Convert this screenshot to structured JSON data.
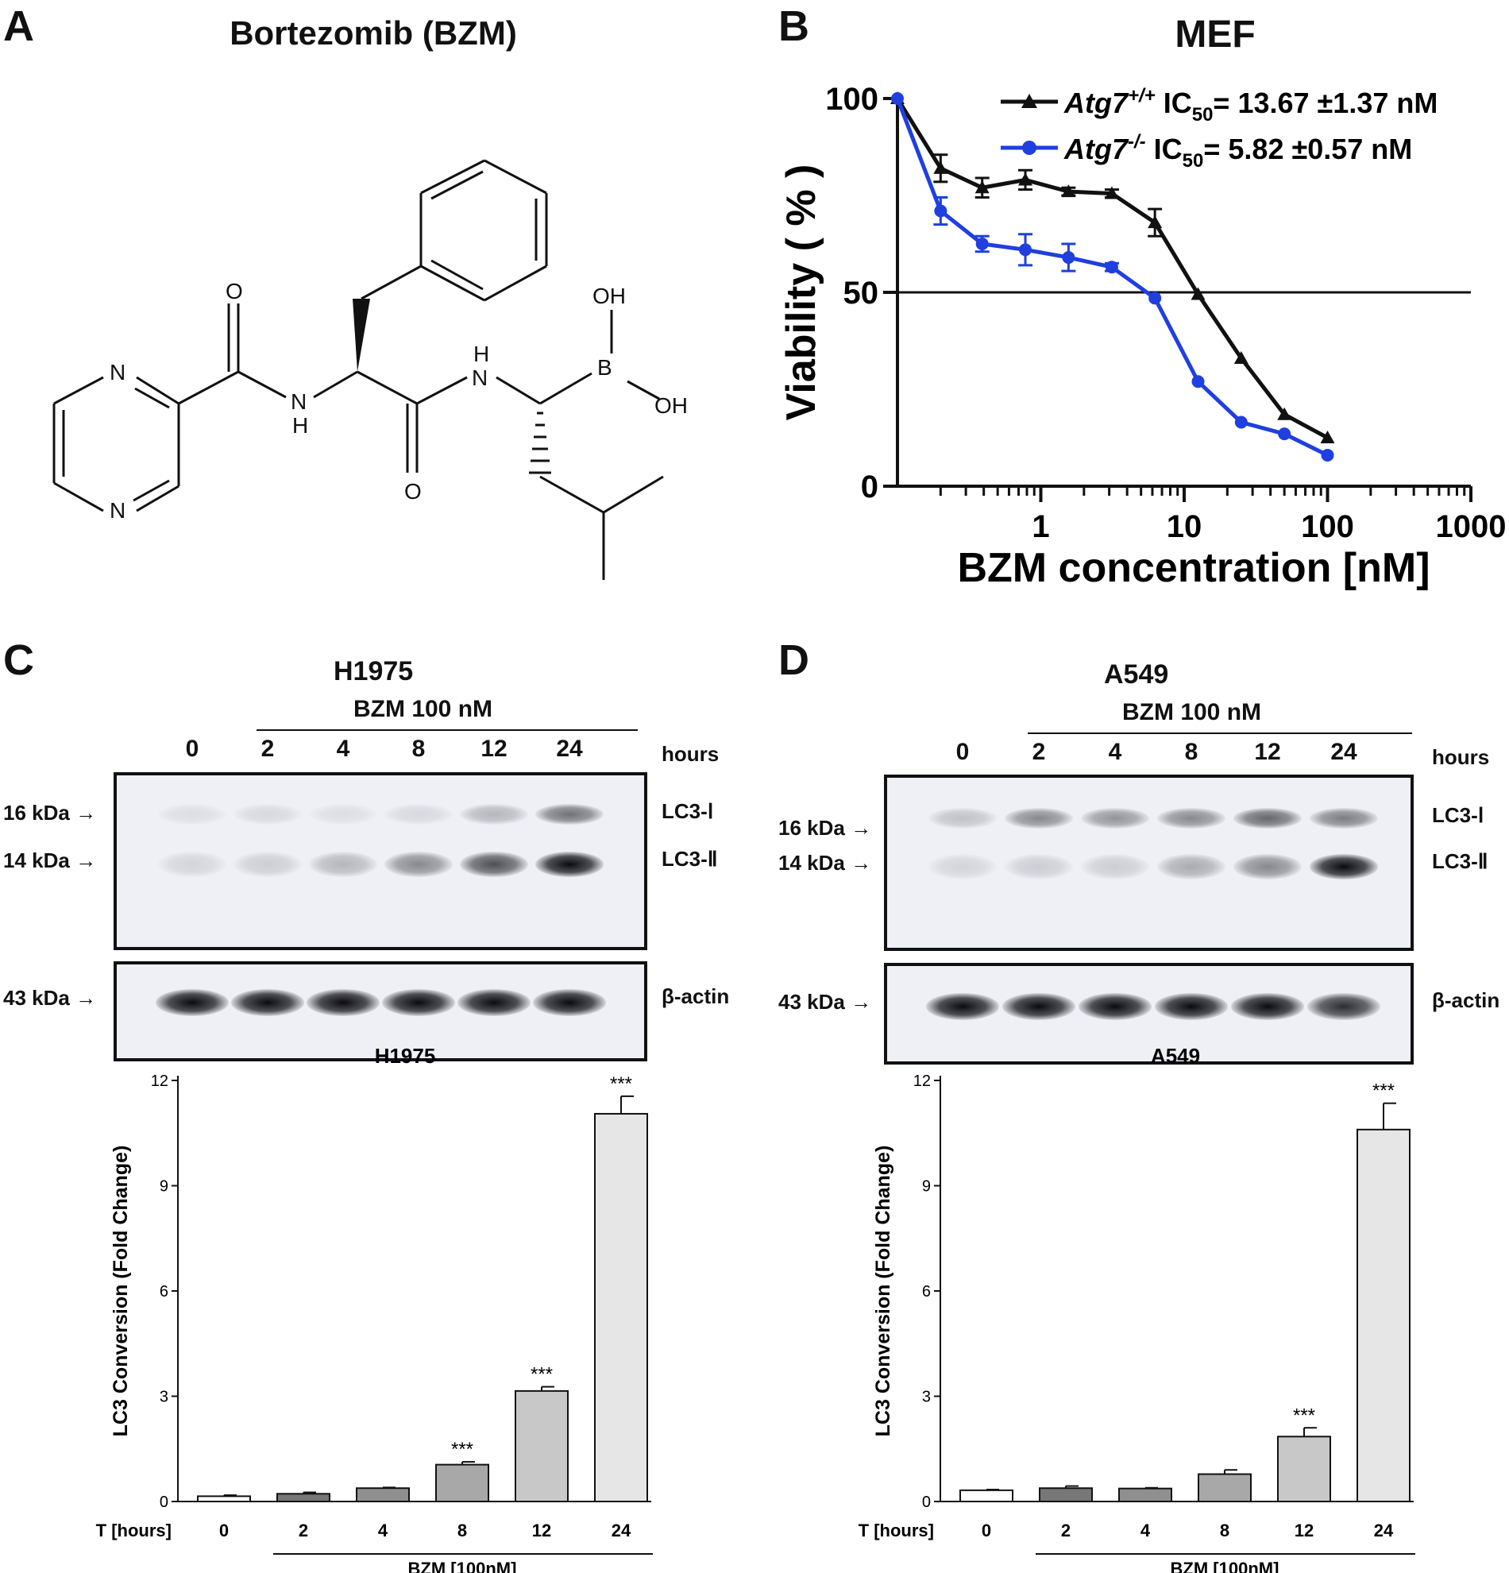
{
  "panels": {
    "A": {
      "letter": "A",
      "title": "Bortezomib (BZM)",
      "atoms": {
        "N1": "N",
        "N2": "N",
        "O1": "O",
        "O2": "O",
        "NH1_N": "N",
        "NH1_H": "H",
        "NH2_N": "N",
        "NH2_H": "H",
        "B": "B",
        "OH1": "OH",
        "OH2": "OH"
      }
    },
    "B": {
      "letter": "B",
      "title": "MEF"
    },
    "C": {
      "letter": "C",
      "cell_line": "H1975",
      "treatment": "BZM 100 nM",
      "lanes": [
        "0",
        "2",
        "4",
        "8",
        "12",
        "24"
      ],
      "lanes_unit": "hours",
      "markers": [
        "16 kDa",
        "14 kDa",
        "43 kDa"
      ],
      "bands": [
        "LC3-Ⅰ",
        "LC3-Ⅱ",
        "β-actin"
      ],
      "lc3_i_intensity": [
        0.08,
        0.1,
        0.08,
        0.1,
        0.25,
        0.55
      ],
      "lc3_ii_intensity": [
        0.12,
        0.15,
        0.25,
        0.45,
        0.7,
        1.0
      ],
      "actin_intensity": [
        1,
        1,
        1,
        1,
        1,
        1
      ]
    },
    "D": {
      "letter": "D",
      "cell_line": "A549",
      "treatment": "BZM 100 nM",
      "lanes": [
        "0",
        "2",
        "4",
        "8",
        "12",
        "24"
      ],
      "lanes_unit": "hours",
      "markers": [
        "16 kDa",
        "14 kDa",
        "43 kDa"
      ],
      "bands": [
        "LC3-Ⅰ",
        "LC3-Ⅱ",
        "β-actin"
      ],
      "lc3_i_intensity": [
        0.2,
        0.45,
        0.4,
        0.45,
        0.6,
        0.5
      ],
      "lc3_ii_intensity": [
        0.12,
        0.15,
        0.15,
        0.3,
        0.45,
        1.0
      ],
      "actin_intensity": [
        1,
        1,
        1,
        1,
        1,
        0.85
      ]
    }
  },
  "chart_data": [
    {
      "type": "line",
      "title": "MEF",
      "xlabel": "BZM concentration [nM]",
      "ylabel": "Viability ( % )",
      "x_scale": "log",
      "xlim": [
        0.1,
        1000
      ],
      "ylim": [
        0,
        100
      ],
      "x_ticks": [
        "1",
        "10",
        "100",
        "1000"
      ],
      "y_ticks": [
        "0",
        "50",
        "100"
      ],
      "reference_line_y": 50,
      "legend_position": "top-right",
      "series": [
        {
          "name": "Atg7",
          "superscript": "+/+",
          "ic50_label": "IC",
          "ic50_sub": "50",
          "ic50_value": "= 13.67 ±1.37 nM",
          "color": "#111111",
          "marker": "triangle",
          "x": [
            0.1,
            0.2,
            0.39,
            0.78,
            1.56,
            3.13,
            6.25,
            12.5,
            25,
            50,
            100
          ],
          "y": [
            100,
            82,
            77,
            79,
            76,
            75.5,
            68,
            49.5,
            33,
            18.5,
            12.5
          ],
          "err": [
            0,
            3.5,
            2.5,
            2.5,
            1,
            1,
            3.5,
            0,
            0,
            0,
            0
          ]
        },
        {
          "name": "Atg7",
          "superscript": "-/-",
          "ic50_label": "IC",
          "ic50_sub": "50",
          "ic50_value": "= 5.82 ±0.57   nM",
          "color": "#1f3fe0",
          "marker": "circle",
          "x": [
            0.1,
            0.2,
            0.39,
            0.78,
            1.56,
            3.13,
            6.25,
            12.5,
            25,
            50,
            100
          ],
          "y": [
            100,
            71,
            62.5,
            61,
            59,
            56.5,
            48.5,
            27,
            16.5,
            13.5,
            8
          ],
          "err": [
            0,
            3.5,
            2,
            4,
            3.5,
            1,
            0,
            0,
            0,
            0,
            0
          ]
        }
      ]
    },
    {
      "type": "bar",
      "title": "H1975",
      "xlabel": "T [hours]",
      "ylabel": "LC3 Conversion (Fold Change)",
      "ylim": [
        0,
        12
      ],
      "y_ticks": [
        "0",
        "3",
        "6",
        "9",
        "12"
      ],
      "categories": [
        "0",
        "2",
        "4",
        "8",
        "12",
        "24"
      ],
      "values": [
        0.15,
        0.22,
        0.38,
        1.05,
        3.15,
        11.05
      ],
      "errors": [
        0.03,
        0.04,
        0.02,
        0.08,
        0.12,
        0.5
      ],
      "significance": [
        "",
        "",
        "",
        "***",
        "***",
        "***"
      ],
      "fills": [
        "#ffffff",
        "#777777",
        "#8f8f8f",
        "#a8a8a8",
        "#c8c8c8",
        "#e6e6e6"
      ],
      "group_label": "BZM    [100nM]"
    },
    {
      "type": "bar",
      "title": "A549",
      "xlabel": "T [hours]",
      "ylabel": "LC3 Conversion (Fold Change)",
      "ylim": [
        0,
        12
      ],
      "y_ticks": [
        "0",
        "3",
        "6",
        "9",
        "12"
      ],
      "categories": [
        "0",
        "2",
        "4",
        "8",
        "12",
        "24"
      ],
      "values": [
        0.32,
        0.38,
        0.37,
        0.78,
        1.85,
        10.6
      ],
      "errors": [
        0.02,
        0.06,
        0.02,
        0.12,
        0.25,
        0.75
      ],
      "significance": [
        "",
        "",
        "",
        "",
        "***",
        "***"
      ],
      "fills": [
        "#ffffff",
        "#777777",
        "#8f8f8f",
        "#a8a8a8",
        "#c8c8c8",
        "#e6e6e6"
      ],
      "group_label": "BZM    [100nM]"
    }
  ]
}
